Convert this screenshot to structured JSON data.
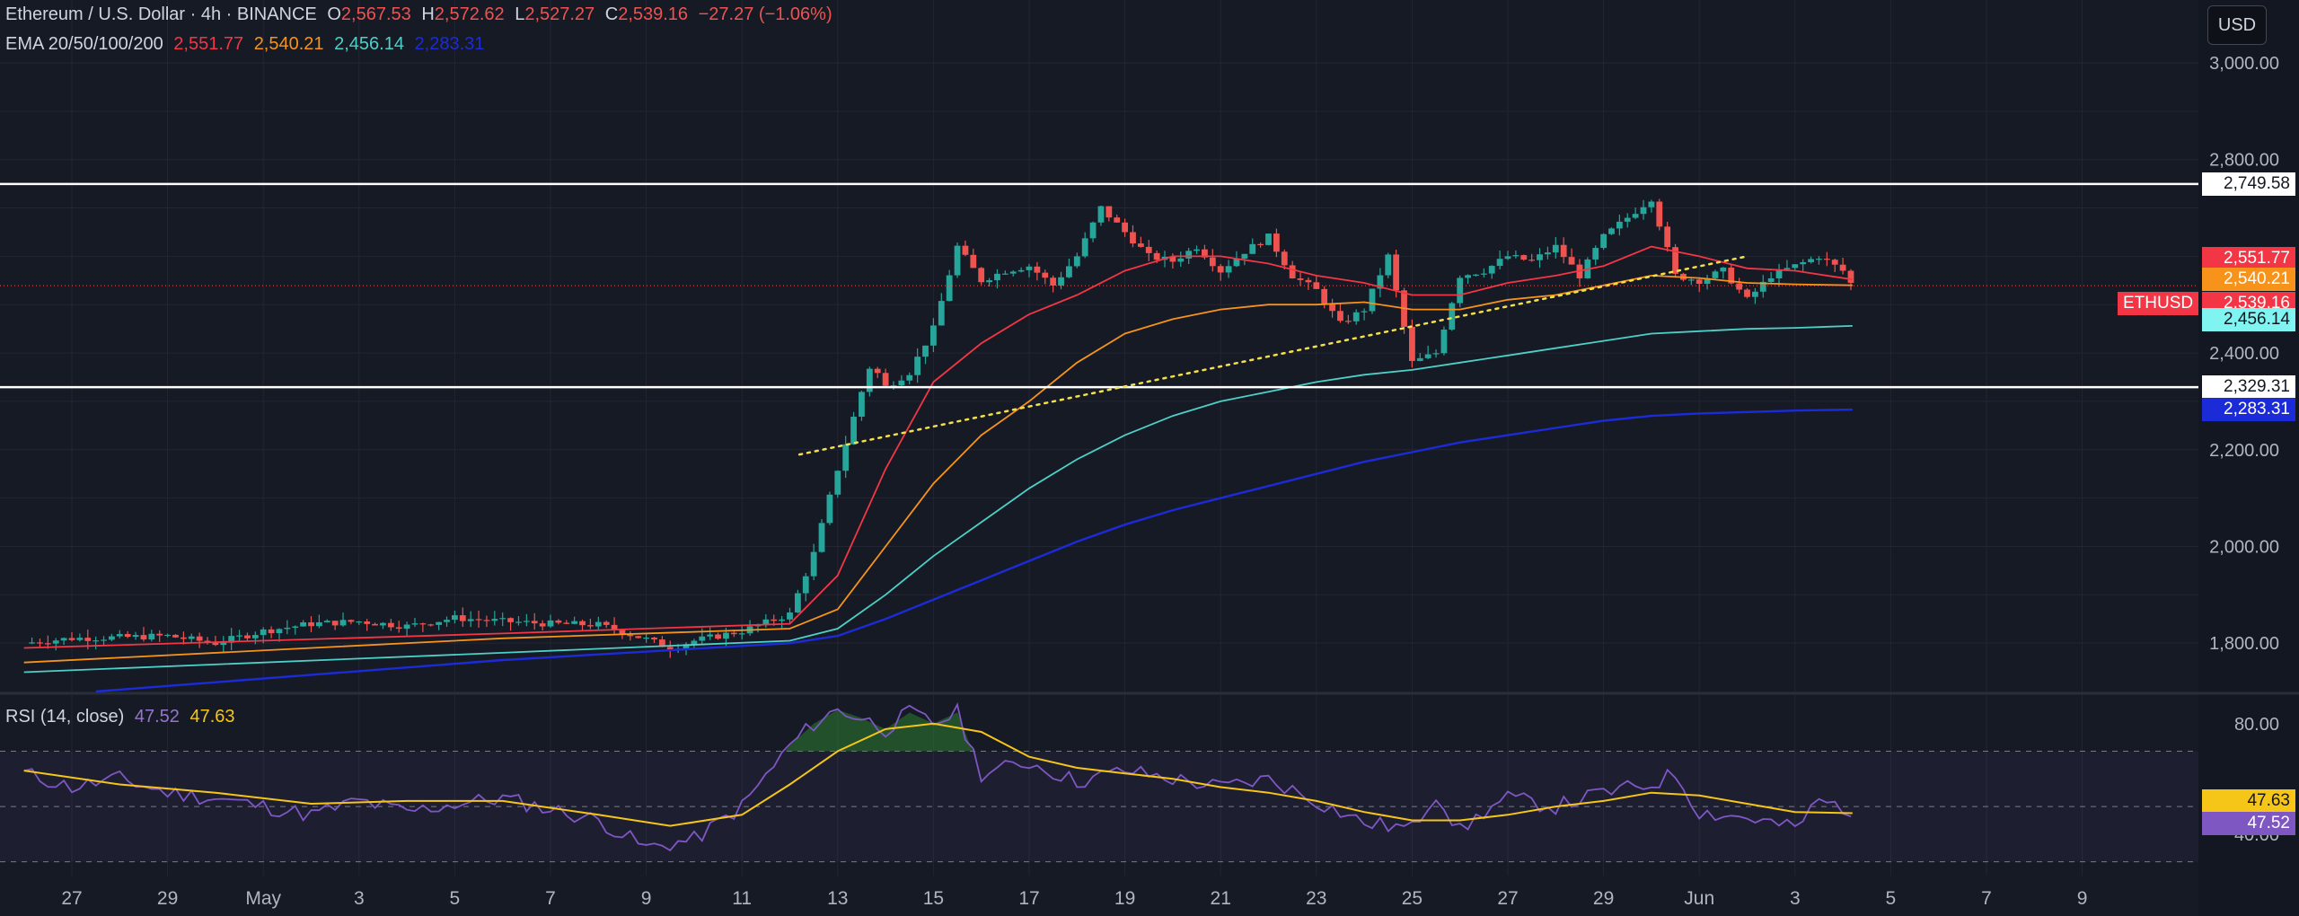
{
  "header": {
    "symbol": "Ethereum / U.S. Dollar · 4h · BINANCE",
    "o_label": "O",
    "o_value": "2,567.53",
    "h_label": "H",
    "h_value": "2,572.62",
    "l_label": "L",
    "l_value": "2,527.27",
    "c_label": "C",
    "c_value": "2,539.16",
    "change": "−27.27 (−1.06%)",
    "ema_label": "EMA 20/50/100/200",
    "ema_values": [
      "2,551.77",
      "2,540.21",
      "2,456.14",
      "2,283.31"
    ],
    "rsi_label": "RSI (14, close)",
    "rsi_values": [
      "47.52",
      "47.63"
    ]
  },
  "currency_button": "USD",
  "colors": {
    "background": "#161a25",
    "up": "#26a69a",
    "down": "#ef5350",
    "ema20": "#f23645",
    "ema50": "#f7931a",
    "ema100": "#4dd0c7",
    "ema200": "#1c2bd8",
    "rsi": "#7e57c2",
    "rsi_ma": "#f5c518",
    "level": "#ffffff",
    "trendline": "#f5e04a"
  },
  "chart_data": {
    "type": "candlestick",
    "title": "Ethereum / U.S. Dollar · 4h · BINANCE",
    "price_axis": {
      "ticks": [
        3000,
        2800,
        2400,
        2200,
        2000,
        1800
      ],
      "tick_labels": [
        "3,000.00",
        "2,800.00",
        "2,400.00",
        "2,200.00",
        "2,000.00",
        "1,800.00"
      ],
      "visible_range": [
        1700,
        3130
      ]
    },
    "x_axis": {
      "labels": [
        "27",
        "29",
        "May",
        "3",
        "5",
        "7",
        "9",
        "11",
        "13",
        "15",
        "17",
        "19",
        "21",
        "23",
        "25",
        "27",
        "29",
        "Jun",
        "3",
        "5",
        "7",
        "9"
      ],
      "start_date": "2025-04-26",
      "first_tick": "2025-04-27",
      "tick_step_days": 2
    },
    "horizontal_levels": [
      {
        "value": 2749.58,
        "label": "2,749.58"
      },
      {
        "value": 2329.31,
        "label": "2,329.31"
      }
    ],
    "price_tags": [
      {
        "value": 2551.77,
        "label": "2,551.77",
        "series": "EMA 20"
      },
      {
        "value": 2540.21,
        "label": "2,540.21",
        "series": "EMA 50"
      },
      {
        "value": 2539.16,
        "label": "2,539.16",
        "series": "ETHUSD",
        "name_label": "ETHUSD"
      },
      {
        "value": 2456.14,
        "label": "2,456.14",
        "series": "EMA 100"
      },
      {
        "value": 2283.31,
        "label": "2,283.31",
        "series": "EMA 200"
      }
    ],
    "trendline": {
      "from": {
        "day": 16.2,
        "price": 2190
      },
      "to": {
        "day": 36.0,
        "price": 2600
      },
      "style": "dotted"
    },
    "price_path": [
      [
        0,
        1800
      ],
      [
        1,
        1810
      ],
      [
        2,
        1812
      ],
      [
        3,
        1815
      ],
      [
        4,
        1800
      ],
      [
        5,
        1825
      ],
      [
        6,
        1840
      ],
      [
        7,
        1845
      ],
      [
        8,
        1835
      ],
      [
        9,
        1852
      ],
      [
        10,
        1845
      ],
      [
        11,
        1840
      ],
      [
        12,
        1838
      ],
      [
        13,
        1808
      ],
      [
        13.5,
        1790
      ],
      [
        14,
        1805
      ],
      [
        15,
        1825
      ],
      [
        16,
        1860
      ],
      [
        16.5,
        1985
      ],
      [
        17,
        2160
      ],
      [
        17.5,
        2320
      ],
      [
        17.7,
        2380
      ],
      [
        18,
        2330
      ],
      [
        18.5,
        2360
      ],
      [
        19,
        2450
      ],
      [
        19.5,
        2620
      ],
      [
        20,
        2550
      ],
      [
        20.5,
        2570
      ],
      [
        21,
        2580
      ],
      [
        21.5,
        2540
      ],
      [
        22,
        2600
      ],
      [
        22.5,
        2700
      ],
      [
        23,
        2650
      ],
      [
        23.5,
        2600
      ],
      [
        24,
        2590
      ],
      [
        24.5,
        2620
      ],
      [
        25,
        2570
      ],
      [
        25.5,
        2610
      ],
      [
        26,
        2640
      ],
      [
        26.5,
        2560
      ],
      [
        27,
        2530
      ],
      [
        27.5,
        2460
      ],
      [
        28,
        2490
      ],
      [
        28.5,
        2600
      ],
      [
        29,
        2380
      ],
      [
        29.5,
        2400
      ],
      [
        30,
        2560
      ],
      [
        30.5,
        2570
      ],
      [
        31,
        2600
      ],
      [
        31.5,
        2590
      ],
      [
        32,
        2620
      ],
      [
        32.5,
        2560
      ],
      [
        33,
        2640
      ],
      [
        33.5,
        2680
      ],
      [
        34,
        2720
      ],
      [
        34.5,
        2560
      ],
      [
        35,
        2550
      ],
      [
        35.5,
        2570
      ],
      [
        36,
        2510
      ],
      [
        36.5,
        2560
      ],
      [
        37,
        2580
      ],
      [
        37.5,
        2600
      ],
      [
        38,
        2570
      ],
      [
        38.2,
        2539
      ]
    ],
    "ema": [
      {
        "name": "EMA 20",
        "last": 2551.77,
        "path": [
          [
            0,
            1790
          ],
          [
            10,
            1820
          ],
          [
            16,
            1840
          ],
          [
            17,
            1940
          ],
          [
            18,
            2160
          ],
          [
            19,
            2340
          ],
          [
            20,
            2420
          ],
          [
            21,
            2480
          ],
          [
            22,
            2520
          ],
          [
            23,
            2570
          ],
          [
            24,
            2600
          ],
          [
            25,
            2600
          ],
          [
            26,
            2585
          ],
          [
            27,
            2560
          ],
          [
            28,
            2545
          ],
          [
            29,
            2520
          ],
          [
            30,
            2520
          ],
          [
            31,
            2545
          ],
          [
            32,
            2560
          ],
          [
            33,
            2580
          ],
          [
            34,
            2620
          ],
          [
            35,
            2600
          ],
          [
            36,
            2575
          ],
          [
            37,
            2570
          ],
          [
            38.2,
            2552
          ]
        ]
      },
      {
        "name": "EMA 50",
        "last": 2540.21,
        "path": [
          [
            0,
            1760
          ],
          [
            10,
            1810
          ],
          [
            16,
            1830
          ],
          [
            17,
            1870
          ],
          [
            18,
            2000
          ],
          [
            19,
            2130
          ],
          [
            20,
            2230
          ],
          [
            21,
            2300
          ],
          [
            22,
            2380
          ],
          [
            23,
            2440
          ],
          [
            24,
            2470
          ],
          [
            25,
            2490
          ],
          [
            26,
            2500
          ],
          [
            27,
            2500
          ],
          [
            28,
            2505
          ],
          [
            29,
            2490
          ],
          [
            30,
            2490
          ],
          [
            31,
            2510
          ],
          [
            32,
            2520
          ],
          [
            33,
            2540
          ],
          [
            34,
            2560
          ],
          [
            35,
            2555
          ],
          [
            36,
            2545
          ],
          [
            37,
            2542
          ],
          [
            38.2,
            2540
          ]
        ]
      },
      {
        "name": "EMA 100",
        "last": 2456.14,
        "path": [
          [
            0,
            1740
          ],
          [
            10,
            1780
          ],
          [
            16,
            1805
          ],
          [
            17,
            1830
          ],
          [
            18,
            1900
          ],
          [
            19,
            1980
          ],
          [
            20,
            2050
          ],
          [
            21,
            2120
          ],
          [
            22,
            2180
          ],
          [
            23,
            2230
          ],
          [
            24,
            2270
          ],
          [
            25,
            2300
          ],
          [
            26,
            2320
          ],
          [
            27,
            2340
          ],
          [
            28,
            2355
          ],
          [
            29,
            2365
          ],
          [
            30,
            2380
          ],
          [
            31,
            2395
          ],
          [
            32,
            2410
          ],
          [
            33,
            2425
          ],
          [
            34,
            2440
          ],
          [
            35,
            2445
          ],
          [
            36,
            2450
          ],
          [
            37,
            2452
          ],
          [
            38.2,
            2456
          ]
        ]
      },
      {
        "name": "EMA 200",
        "last": 2283.31,
        "path": [
          [
            1.5,
            1700
          ],
          [
            10,
            1765
          ],
          [
            16,
            1800
          ],
          [
            17,
            1815
          ],
          [
            18,
            1850
          ],
          [
            19,
            1890
          ],
          [
            20,
            1930
          ],
          [
            21,
            1970
          ],
          [
            22,
            2010
          ],
          [
            23,
            2045
          ],
          [
            24,
            2075
          ],
          [
            25,
            2100
          ],
          [
            26,
            2125
          ],
          [
            27,
            2150
          ],
          [
            28,
            2175
          ],
          [
            29,
            2195
          ],
          [
            30,
            2215
          ],
          [
            31,
            2230
          ],
          [
            32,
            2245
          ],
          [
            33,
            2260
          ],
          [
            34,
            2270
          ],
          [
            35,
            2275
          ],
          [
            36,
            2278
          ],
          [
            37,
            2281
          ],
          [
            38.2,
            2283
          ]
        ]
      }
    ],
    "rsi": {
      "name": "RSI (14, close)",
      "levels": [
        70,
        50,
        30
      ],
      "tick_labels": {
        "upper": "80.00",
        "lower": "40.00"
      },
      "ticks": [
        80,
        40
      ],
      "visible_range": [
        25,
        90
      ],
      "rsi_last": 47.52,
      "ma_last": 47.63,
      "path": [
        [
          0,
          62
        ],
        [
          1,
          57
        ],
        [
          2,
          60
        ],
        [
          3,
          55
        ],
        [
          4,
          53
        ],
        [
          5,
          50
        ],
        [
          6,
          47
        ],
        [
          7,
          52
        ],
        [
          8,
          48
        ],
        [
          9,
          51
        ],
        [
          10,
          53
        ],
        [
          11,
          49
        ],
        [
          12,
          45
        ],
        [
          13,
          35
        ],
        [
          14,
          38
        ],
        [
          15,
          50
        ],
        [
          16,
          72
        ],
        [
          16.5,
          80
        ],
        [
          17,
          85
        ],
        [
          17.5,
          82
        ],
        [
          18,
          78
        ],
        [
          18.5,
          84
        ],
        [
          19,
          80
        ],
        [
          19.5,
          84
        ],
        [
          20,
          62
        ],
        [
          21,
          66
        ],
        [
          22,
          59
        ],
        [
          23,
          63
        ],
        [
          24,
          60
        ],
        [
          25,
          57
        ],
        [
          26,
          60
        ],
        [
          27,
          52
        ],
        [
          28,
          44
        ],
        [
          29,
          42
        ],
        [
          29.5,
          55
        ],
        [
          30,
          41
        ],
        [
          30.5,
          48
        ],
        [
          31,
          53
        ],
        [
          32,
          50
        ],
        [
          33,
          55
        ],
        [
          34,
          58
        ],
        [
          34.5,
          62
        ],
        [
          35,
          48
        ],
        [
          36,
          46
        ],
        [
          37,
          42
        ],
        [
          37.5,
          52
        ],
        [
          38,
          50
        ],
        [
          38.2,
          47.5
        ]
      ],
      "ma_path": [
        [
          0,
          63
        ],
        [
          2,
          58
        ],
        [
          4,
          55
        ],
        [
          6,
          51
        ],
        [
          8,
          52
        ],
        [
          10,
          52
        ],
        [
          12,
          47
        ],
        [
          13.5,
          43
        ],
        [
          15,
          47
        ],
        [
          16,
          58
        ],
        [
          17,
          70
        ],
        [
          18,
          78
        ],
        [
          19,
          80
        ],
        [
          20,
          77
        ],
        [
          21,
          68
        ],
        [
          22,
          64
        ],
        [
          23,
          62
        ],
        [
          24,
          60
        ],
        [
          25,
          57
        ],
        [
          26,
          55
        ],
        [
          27,
          52
        ],
        [
          28,
          48
        ],
        [
          29,
          45
        ],
        [
          30,
          45
        ],
        [
          31,
          47
        ],
        [
          32,
          50
        ],
        [
          33,
          52
        ],
        [
          34,
          55
        ],
        [
          35,
          54
        ],
        [
          36,
          51
        ],
        [
          37,
          48
        ],
        [
          38.2,
          47.6
        ]
      ]
    }
  }
}
